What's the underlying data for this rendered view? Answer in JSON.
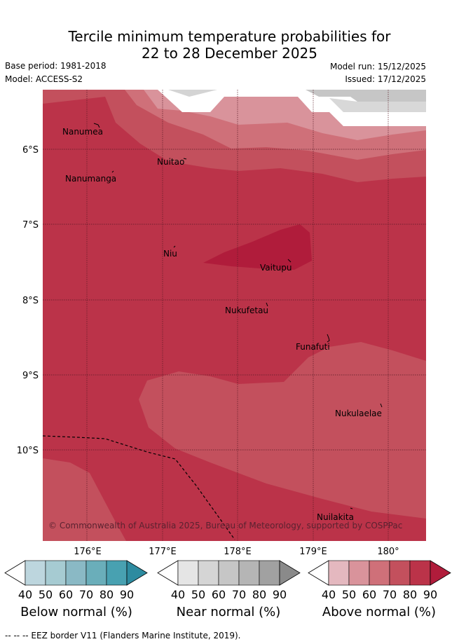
{
  "title": {
    "line1": "Tercile minimum temperature probabilities for",
    "line2": "22 to 28 December 2025"
  },
  "meta": {
    "base_period": "Base period: 1981-2018",
    "model": "Model: ACCESS-S2",
    "model_run": "Model run: 15/12/2025",
    "issued": "Issued: 17/12/2025"
  },
  "map": {
    "lat_labels": [
      "6°S",
      "7°S",
      "8°S",
      "9°S",
      "10°S"
    ],
    "lon_labels": [
      "176°E",
      "177°E",
      "178°E",
      "179°E",
      "180°"
    ],
    "places": [
      {
        "name": "Nanumea"
      },
      {
        "name": "Nanumanga"
      },
      {
        "name": "Nuitao"
      },
      {
        "name": "Niu"
      },
      {
        "name": "Vaitupu"
      },
      {
        "name": "Nukufetau"
      },
      {
        "name": "Funafuti"
      },
      {
        "name": "Nukulaelae"
      },
      {
        "name": "Nuilakita"
      }
    ],
    "copyright": "© Commonwealth of Australia 2025, Bureau of Meteorology, supported by COSPPac"
  },
  "colorbars": [
    {
      "name": "below",
      "title": "Below normal (%)",
      "ticks": [
        "40",
        "50",
        "60",
        "70",
        "80",
        "90"
      ],
      "colors": [
        "#ffffff",
        "#bdd6de",
        "#a6cbd2",
        "#8ab9c5",
        "#6aaeba",
        "#48a1b1",
        "#2d8ba0"
      ]
    },
    {
      "name": "near",
      "title": "Near normal (%)",
      "ticks": [
        "40",
        "50",
        "60",
        "70",
        "80",
        "90"
      ],
      "colors": [
        "#ffffff",
        "#e5e5e5",
        "#d5d5d5",
        "#c6c6c6",
        "#b5b5b5",
        "#a1a1a1",
        "#8a8a8a"
      ]
    },
    {
      "name": "above",
      "title": "Above normal (%)",
      "ticks": [
        "40",
        "50",
        "60",
        "70",
        "80",
        "90"
      ],
      "colors": [
        "#ffffff",
        "#e4b8bf",
        "#d9939b",
        "#cf7079",
        "#c3505d",
        "#bb3349",
        "#b01c3b"
      ]
    }
  ],
  "legend": {
    "eez": "-- -- -- EEZ border V11 (Flanders Marine Institute, 2019)."
  }
}
